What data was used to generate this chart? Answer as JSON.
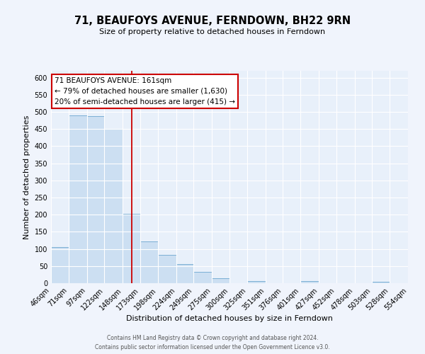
{
  "title": "71, BEAUFOYS AVENUE, FERNDOWN, BH22 9RN",
  "subtitle": "Size of property relative to detached houses in Ferndown",
  "xlabel": "Distribution of detached houses by size in Ferndown",
  "ylabel": "Number of detached properties",
  "bar_color": "#ccdff2",
  "bar_edge_color": "#7bafd4",
  "bg_color": "#e8f0fa",
  "grid_color": "#ffffff",
  "ref_line_x": 161,
  "ref_line_color": "#cc0000",
  "annotation_line1": "71 BEAUFOYS AVENUE: 161sqm",
  "annotation_line2": "← 79% of detached houses are smaller (1,630)",
  "annotation_line3": "20% of semi-detached houses are larger (415) →",
  "annotation_box_color": "#ffffff",
  "annotation_box_edge": "#cc0000",
  "footer_text": "Contains HM Land Registry data © Crown copyright and database right 2024.\nContains public sector information licensed under the Open Government Licence v3.0.",
  "bin_edges": [
    46,
    71,
    97,
    122,
    148,
    173,
    198,
    224,
    249,
    275,
    300,
    325,
    351,
    376,
    401,
    427,
    452,
    478,
    503,
    528,
    554
  ],
  "bin_heights": [
    105,
    490,
    487,
    450,
    202,
    122,
    83,
    55,
    34,
    15,
    0,
    7,
    0,
    0,
    7,
    0,
    0,
    0,
    5,
    0
  ],
  "ylim": [
    0,
    620
  ],
  "yticks": [
    0,
    50,
    100,
    150,
    200,
    250,
    300,
    350,
    400,
    450,
    500,
    550,
    600
  ],
  "title_fontsize": 10.5,
  "subtitle_fontsize": 8,
  "axis_label_fontsize": 8,
  "tick_fontsize": 7,
  "footer_fontsize": 5.5
}
